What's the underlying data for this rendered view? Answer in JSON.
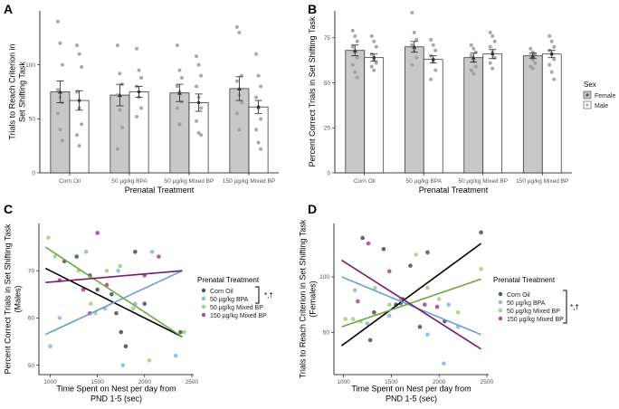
{
  "panel_labels": [
    "A",
    "B",
    "C",
    "D"
  ],
  "sex_legend": {
    "title": "Sex",
    "items": [
      {
        "label": "Female",
        "fill": "#c8c8c8"
      },
      {
        "label": "Male",
        "fill": "#ffffff"
      }
    ]
  },
  "treatment_legend": {
    "title": "Prenatal Treatment",
    "items": [
      {
        "label": "Corn Oil",
        "color": "#000000",
        "point": "#555555"
      },
      {
        "label": "50 µg/kg BPA",
        "color": "#6a9fd4",
        "point": "#8fb8e0"
      },
      {
        "label": "50 µg/kg Mixed BP",
        "color": "#6fa843",
        "point": "#a7cf8a"
      },
      {
        "label": "150 µg/kg Mixed BP",
        "color": "#7a1a6e",
        "point": "#b2479f"
      }
    ]
  },
  "significance": {
    "C": "*,†",
    "D": "*,†"
  },
  "chart_data": [
    {
      "panel": "A",
      "type": "bar",
      "ylabel": "Trials to Reach Criterion in\nSet Shifting Task",
      "xlabel": "Prenatal Treatment",
      "ylim": [
        0,
        150
      ],
      "yticks": [
        0,
        50,
        100
      ],
      "categories": [
        "Corn Oil",
        "50 µg/kg BPA",
        "50 µg/kg Mixed BP",
        "150 µg/kg Mixed BP"
      ],
      "series": [
        {
          "name": "Female",
          "values": [
            75,
            72,
            74,
            78
          ],
          "errors": [
            10,
            10,
            8,
            11
          ],
          "points": [
            [
              140,
              120,
              100,
              77,
              70,
              65,
              55,
              40,
              30
            ],
            [
              118,
              92,
              82,
              72,
              58,
              42,
              22
            ],
            [
              118,
              95,
              88,
              80,
              75,
              66,
              60,
              45
            ],
            [
              135,
              130,
              90,
              85,
              72,
              65,
              55,
              40
            ]
          ]
        },
        {
          "name": "Male",
          "values": [
            67,
            75,
            65,
            61
          ],
          "errors": [
            9,
            5,
            8,
            6
          ],
          "points": [
            [
              118,
              110,
              98,
              75,
              60,
              45,
              35,
              25
            ],
            [
              115,
              95,
              88,
              80,
              70,
              60,
              52
            ],
            [
              108,
              100,
              90,
              80,
              70,
              60,
              48,
              37,
              35
            ],
            [
              110,
              90,
              80,
              70,
              60,
              50,
              40,
              28,
              22
            ]
          ]
        }
      ]
    },
    {
      "panel": "B",
      "type": "bar",
      "ylabel": "Percent Correct Trials in Set Shifting Task",
      "xlabel": "Prenatal Treatment",
      "ylim": [
        0,
        90
      ],
      "yticks": [
        0,
        25,
        50,
        75
      ],
      "categories": [
        "Corn Oil",
        "50 µg/kg BPA",
        "50 µg/kg Mixed BP",
        "150 µg/kg Mixed BP"
      ],
      "series": [
        {
          "name": "Female",
          "values": [
            68,
            70,
            64,
            65
          ],
          "errors": [
            3,
            3,
            2.5,
            1.5
          ],
          "points": [
            [
              79,
              76,
              73,
              70,
              67,
              64,
              60,
              56,
              53
            ],
            [
              89,
              78,
              74,
              71,
              68,
              64,
              60
            ],
            [
              71,
              69,
              67,
              65,
              62,
              59,
              57,
              55
            ],
            [
              69,
              67,
              66,
              65,
              63,
              61,
              59,
              58
            ]
          ]
        },
        {
          "name": "Male",
          "values": [
            64,
            63,
            66,
            66
          ],
          "errors": [
            2,
            2,
            2.5,
            2
          ],
          "points": [
            [
              76,
              73,
              70,
              66,
              63,
              61,
              59,
              57
            ],
            [
              74,
              71,
              68,
              65,
              62,
              57,
              52
            ],
            [
              78,
              76,
              73,
              70,
              67,
              64,
              61,
              58
            ],
            [
              76,
              73,
              70,
              68,
              66,
              63,
              60,
              56,
              52
            ]
          ]
        }
      ]
    },
    {
      "panel": "C",
      "type": "scatter",
      "ylabel": "Percent Correct Trials in Set Shifting Task\n(Males)",
      "xlabel": "Time Spent on Nest per day from\nPND 1-5 (sec)",
      "xlim": [
        880,
        2520
      ],
      "ylim": [
        48,
        80
      ],
      "xticks": [
        1000,
        1500,
        2000,
        2500
      ],
      "yticks": [
        50,
        60,
        70
      ],
      "series": [
        {
          "name": "Corn Oil",
          "line": [
            [
              950,
              70.5
            ],
            [
              2400,
              56
            ]
          ],
          "points": [
            [
              1150,
              72
            ],
            [
              1280,
              73
            ],
            [
              1420,
              69
            ],
            [
              1500,
              66
            ],
            [
              1650,
              65
            ],
            [
              1700,
              61
            ],
            [
              1750,
              57
            ],
            [
              1800,
              54
            ],
            [
              1900,
              74
            ],
            [
              2000,
              63
            ],
            [
              2380,
              57
            ]
          ]
        },
        {
          "name": "50 µg/kg BPA",
          "line": [
            [
              950,
              56.5
            ],
            [
              2400,
              70
            ]
          ],
          "points": [
            [
              1000,
              54
            ],
            [
              1100,
              60
            ],
            [
              1380,
              74
            ],
            [
              1580,
              62
            ],
            [
              1720,
              70
            ],
            [
              1770,
              50
            ],
            [
              1900,
              63
            ],
            [
              2080,
              74
            ],
            [
              2330,
              52
            ]
          ]
        },
        {
          "name": "50 µg/kg Mixed BP",
          "line": [
            [
              950,
              75
            ],
            [
              2400,
              56
            ]
          ],
          "points": [
            [
              980,
              77
            ],
            [
              1050,
              73
            ],
            [
              1300,
              70
            ],
            [
              1430,
              63
            ],
            [
              1480,
              61
            ],
            [
              1600,
              70
            ],
            [
              1740,
              71
            ],
            [
              1880,
              62
            ],
            [
              2050,
              51
            ],
            [
              2420,
              57
            ]
          ]
        },
        {
          "name": "150 µg/kg Mixed BP",
          "line": [
            [
              950,
              67.5
            ],
            [
              2400,
              70
            ]
          ],
          "points": [
            [
              1100,
              68
            ],
            [
              1350,
              66
            ],
            [
              1420,
              61
            ],
            [
              1500,
              78
            ],
            [
              1600,
              67
            ],
            [
              2000,
              69
            ],
            [
              2150,
              73
            ]
          ]
        }
      ]
    },
    {
      "panel": "D",
      "type": "scatter",
      "ylabel": "Trials to Reach Criterion in Set Shifting Task\n(Females)",
      "xlabel": "Time Spent on Nest per day from\nPND 1-5 (sec)",
      "xlim": [
        900,
        2520
      ],
      "ylim": [
        12,
        148
      ],
      "xticks": [
        1000,
        1500,
        2000,
        2500
      ],
      "yticks": [
        50,
        100
      ],
      "series": [
        {
          "name": "Corn Oil",
          "line": [
            [
              980,
              38
            ],
            [
              2440,
              130
            ]
          ],
          "points": [
            [
              1200,
              135
            ],
            [
              1280,
              43
            ],
            [
              1320,
              68
            ],
            [
              1420,
              125
            ],
            [
              1550,
              75
            ],
            [
              1620,
              80
            ],
            [
              1700,
              110
            ],
            [
              1800,
              55
            ],
            [
              1880,
              122
            ],
            [
              2060,
              60
            ],
            [
              2440,
              140
            ]
          ]
        },
        {
          "name": "50 µg/kg BPA",
          "line": [
            [
              980,
              100
            ],
            [
              2440,
              48
            ]
          ],
          "points": [
            [
              1120,
              88
            ],
            [
              1250,
              58
            ],
            [
              1480,
              65
            ],
            [
              1600,
              80
            ],
            [
              1880,
              48
            ],
            [
              2050,
              22
            ],
            [
              2100,
              75
            ],
            [
              2200,
              55
            ]
          ]
        },
        {
          "name": "50 µg/kg Mixed BP",
          "line": [
            [
              980,
              55
            ],
            [
              2440,
              98
            ]
          ],
          "points": [
            [
              1020,
              62
            ],
            [
              1100,
              62
            ],
            [
              1180,
              60
            ],
            [
              1330,
              90
            ],
            [
              1480,
              75
            ],
            [
              1760,
              120
            ],
            [
              1880,
              90
            ],
            [
              2000,
              80
            ],
            [
              2200,
              68
            ],
            [
              2440,
              107
            ]
          ]
        },
        {
          "name": "150 µg/kg Mixed BP",
          "line": [
            [
              980,
              115
            ],
            [
              2440,
              35
            ]
          ],
          "points": [
            [
              1150,
              78
            ],
            [
              1260,
              130
            ],
            [
              1480,
              105
            ],
            [
              1600,
              76
            ],
            [
              1850,
              75
            ],
            [
              1980,
              73
            ]
          ]
        }
      ]
    }
  ]
}
